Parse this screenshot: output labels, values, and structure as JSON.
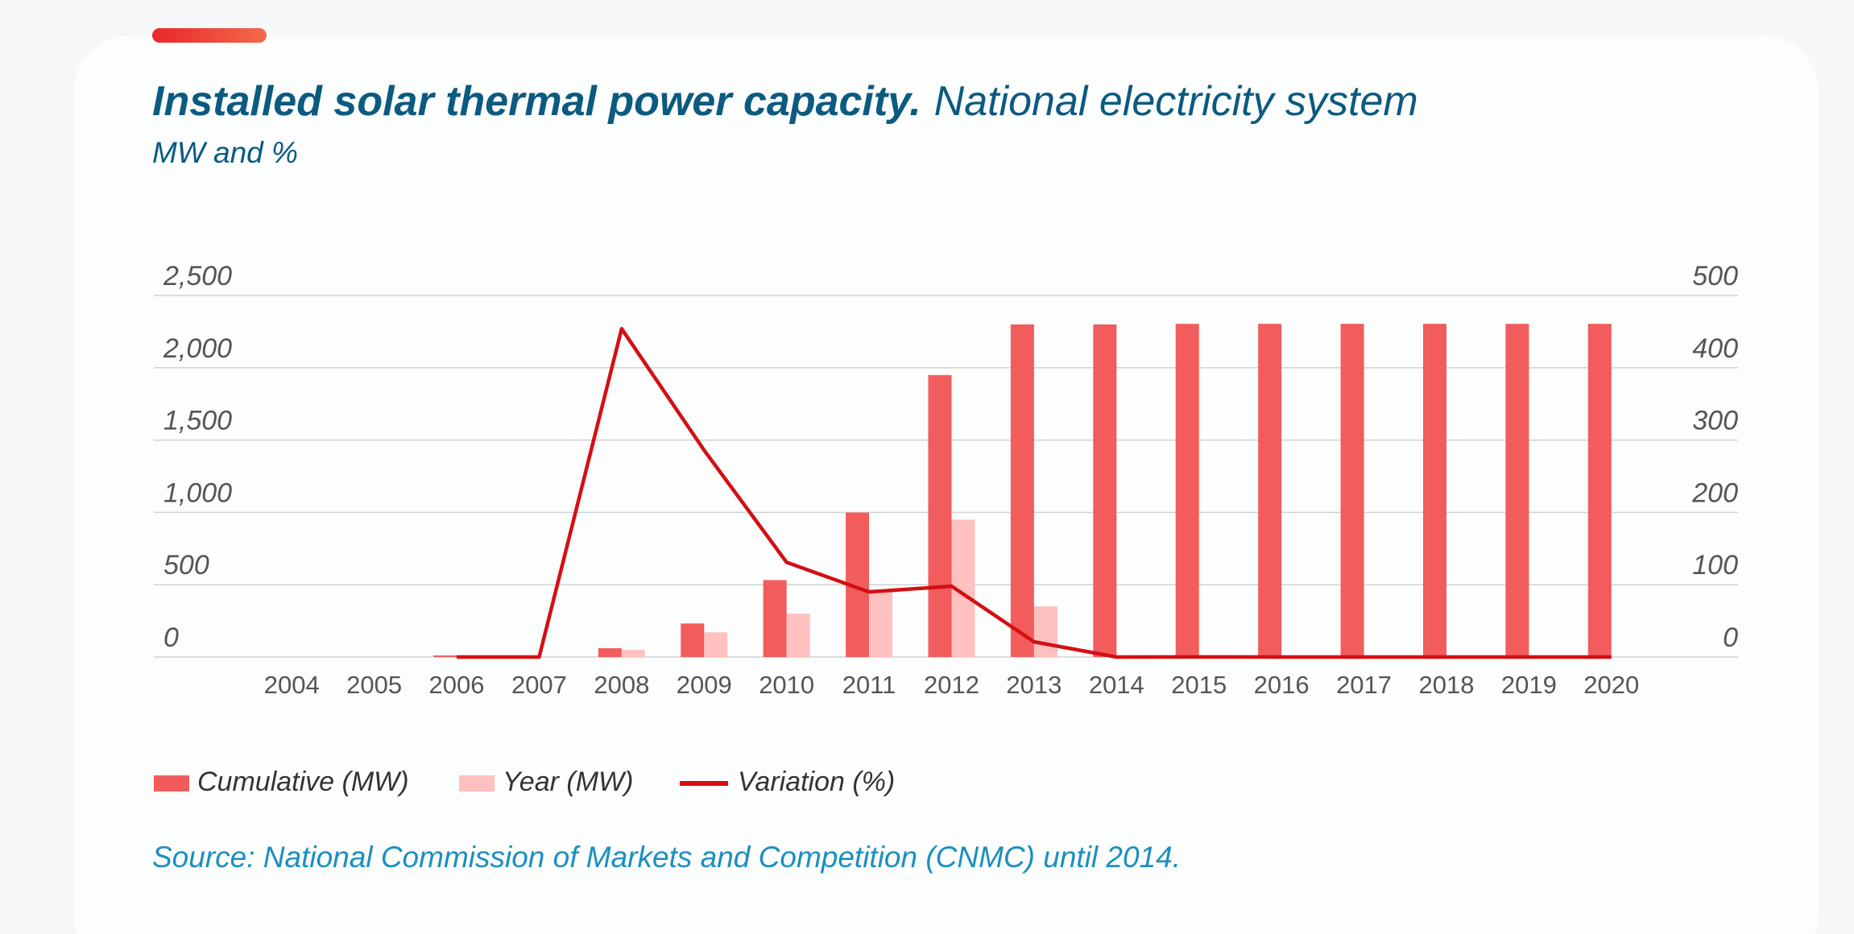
{
  "chart_data": {
    "type": "bar",
    "title": "Installed solar thermal power capacity.",
    "title_suffix": "National electricity system",
    "subtitle": "MW and %",
    "source": "Source: National Commission of Markets and Competition (CNMC) until 2014.",
    "categories": [
      "2004",
      "2005",
      "2006",
      "2007",
      "2008",
      "2009",
      "2010",
      "2011",
      "2012",
      "2013",
      "2014",
      "2015",
      "2016",
      "2017",
      "2018",
      "2019",
      "2020"
    ],
    "series": [
      {
        "name": "Cumulative (MW)",
        "type": "bar",
        "color": "#f25c5c",
        "values": [
          null,
          null,
          11,
          11,
          61,
          232,
          532,
          999,
          1950,
          2300,
          2300,
          2304,
          2304,
          2304,
          2304,
          2304,
          2304
        ]
      },
      {
        "name": "Year (MW)",
        "type": "bar",
        "color": "#ffc0c0",
        "values": [
          null,
          null,
          11,
          0,
          50,
          171,
          300,
          467,
          950,
          350,
          0,
          4,
          0,
          0,
          0,
          0,
          0
        ]
      },
      {
        "name": "Variation (%)",
        "type": "line",
        "color": "#d40f14",
        "axis": "y2",
        "values": [
          null,
          null,
          0,
          0,
          454,
          286,
          131,
          90,
          98,
          21,
          0,
          0.2,
          0,
          0,
          0,
          0,
          0
        ]
      }
    ],
    "ylim": [
      0,
      2500
    ],
    "yticks": [
      0,
      {
        "value": 500,
        "label": "500"
      },
      {
        "value": 1000,
        "label": "1,000"
      },
      {
        "value": 1500,
        "label": "1,500"
      },
      {
        "value": 2000,
        "label": "2,000"
      },
      {
        "value": 2500,
        "label": "2,500"
      }
    ],
    "y2lim": [
      0,
      500
    ],
    "y2ticks": [
      0,
      100,
      200,
      300,
      400,
      500
    ],
    "grid": true
  }
}
